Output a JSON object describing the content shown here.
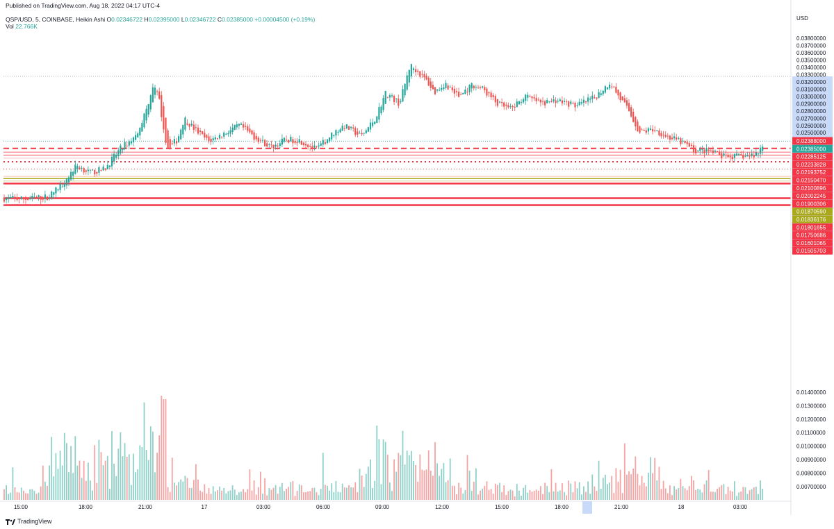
{
  "header": {
    "published": "Published on TradingView.com, Aug 18, 2022 04:17 UTC-4",
    "symbol": "QSP/USD, 5, COINBASE, Heikin Ashi",
    "o_label": "O",
    "o_value": "0.02346722",
    "h_label": "H",
    "h_value": "0.02395000",
    "l_label": "L",
    "l_value": "0.02346722",
    "c_label": "C",
    "c_value": "0.02385000",
    "change": "+0.00004500 (+0.19%)",
    "vol_label": "Vol",
    "vol_value": "22.766K"
  },
  "footer": {
    "brand": "TradingView"
  },
  "colors": {
    "up": "#26a69a",
    "down": "#ef5350",
    "line_red": "#f23645",
    "line_olive": "#a8a81a",
    "axis_bg": "#c9daf8"
  },
  "chart_data": {
    "type": "candlestick",
    "currency_label": "USD",
    "price_ticks": [
      "0.03800000",
      "0.03700000",
      "0.03600000",
      "0.03500000",
      "0.03400000",
      "0.03300000",
      "0.03200000",
      "0.03100000",
      "0.03000000",
      "0.02900000",
      "0.02800000",
      "0.02700000",
      "0.02600000",
      "0.02500000"
    ],
    "volume_ticks": [
      "0.01400000",
      "0.01300000",
      "0.01200000",
      "0.01100000",
      "0.01000000",
      "0.00900000",
      "0.00800000",
      "0.00700000"
    ],
    "time_labels": [
      "15:00",
      "18:00",
      "21:00",
      "17",
      "03:00",
      "06:00",
      "09:00",
      "12:00",
      "15:00",
      "18:00",
      "21:00",
      "18",
      "03:00"
    ],
    "price_tags": [
      {
        "text": "0.02388000",
        "color": "#f23645",
        "price": 0.02388
      },
      {
        "text": "0.02385000",
        "color": "#26a69a",
        "price": 0.02385
      },
      {
        "text": "0.02285125",
        "color": "#f23645",
        "price": 0.02285125
      },
      {
        "text": "0.02233828",
        "color": "#f23645",
        "price": 0.02233828
      },
      {
        "text": "0.02193752",
        "color": "#f23645",
        "price": 0.02193752
      },
      {
        "text": "0.02150470",
        "color": "#f23645",
        "price": 0.0215047
      },
      {
        "text": "0.02100896",
        "color": "#f23645",
        "price": 0.02100896
      },
      {
        "text": "0.02002245",
        "color": "#f23645",
        "price": 0.02002245
      },
      {
        "text": "0.01900306",
        "color": "#f23645",
        "price": 0.01900306
      },
      {
        "text": "0.01870590",
        "color": "#a8a81a",
        "price": 0.0187059
      },
      {
        "text": "0.01836176",
        "color": "#a8a81a",
        "price": 0.01836176
      },
      {
        "text": "0.01801655",
        "color": "#f23645",
        "price": 0.01801655
      },
      {
        "text": "0.01750686",
        "color": "#f23645",
        "price": 0.01750686
      },
      {
        "text": "0.01601065",
        "color": "#f23645",
        "price": 0.01601065
      },
      {
        "text": "0.01505703",
        "color": "#f23645",
        "price": 0.01505703
      }
    ],
    "key_points": [
      [
        0,
        0.016
      ],
      [
        35,
        0.0159
      ],
      [
        70,
        0.0162
      ],
      [
        90,
        0.018
      ],
      [
        110,
        0.0205
      ],
      [
        130,
        0.0195
      ],
      [
        150,
        0.02
      ],
      [
        175,
        0.023
      ],
      [
        195,
        0.0245
      ],
      [
        210,
        0.028
      ],
      [
        220,
        0.0315
      ],
      [
        228,
        0.03
      ],
      [
        240,
        0.023
      ],
      [
        255,
        0.024
      ],
      [
        265,
        0.027
      ],
      [
        280,
        0.0255
      ],
      [
        300,
        0.0238
      ],
      [
        320,
        0.0248
      ],
      [
        345,
        0.026
      ],
      [
        365,
        0.0245
      ],
      [
        390,
        0.023
      ],
      [
        410,
        0.024
      ],
      [
        430,
        0.024
      ],
      [
        455,
        0.0227
      ],
      [
        480,
        0.025
      ],
      [
        495,
        0.026
      ],
      [
        520,
        0.0245
      ],
      [
        540,
        0.027
      ],
      [
        555,
        0.0305
      ],
      [
        575,
        0.029
      ],
      [
        590,
        0.0343
      ],
      [
        600,
        0.0335
      ],
      [
        615,
        0.032
      ],
      [
        625,
        0.0305
      ],
      [
        640,
        0.0318
      ],
      [
        660,
        0.03
      ],
      [
        680,
        0.0316
      ],
      [
        695,
        0.031
      ],
      [
        715,
        0.029
      ],
      [
        735,
        0.0282
      ],
      [
        755,
        0.03
      ],
      [
        780,
        0.029
      ],
      [
        800,
        0.0295
      ],
      [
        830,
        0.0287
      ],
      [
        855,
        0.0298
      ],
      [
        870,
        0.0312
      ],
      [
        878,
        0.032
      ],
      [
        890,
        0.03
      ],
      [
        905,
        0.028
      ],
      [
        920,
        0.025
      ],
      [
        940,
        0.0255
      ],
      [
        960,
        0.0245
      ],
      [
        985,
        0.0235
      ],
      [
        1000,
        0.0225
      ],
      [
        1020,
        0.0225
      ],
      [
        1040,
        0.0217
      ],
      [
        1080,
        0.0218
      ],
      [
        1090,
        0.0222
      ],
      [
        1100,
        0.0238
      ]
    ]
  }
}
